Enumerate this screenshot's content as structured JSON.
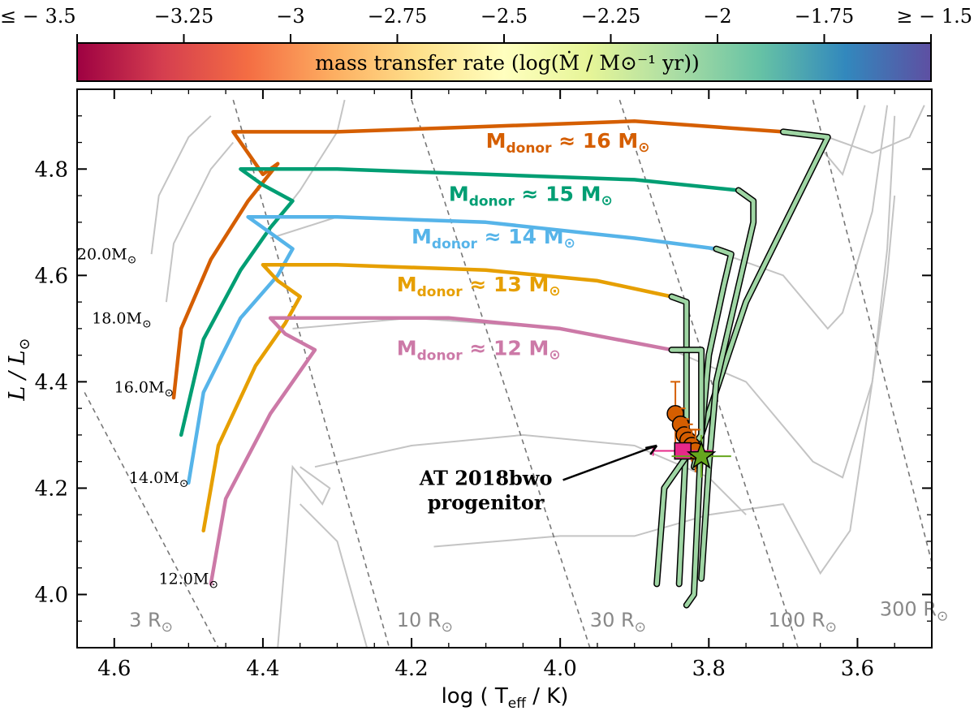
{
  "chart_data": {
    "type": "line",
    "title": "",
    "xlabel": "log ( T_eff / K)",
    "ylabel": "L / L_⊙",
    "xlim": [
      4.65,
      3.5
    ],
    "ylim": [
      3.9,
      4.95
    ],
    "x_ticks": [
      {
        "value": 4.6,
        "label": "4.6"
      },
      {
        "value": 4.4,
        "label": "4.4"
      },
      {
        "value": 4.2,
        "label": "4.2"
      },
      {
        "value": 4.0,
        "label": "4.0"
      },
      {
        "value": 3.8,
        "label": "3.8"
      },
      {
        "value": 3.6,
        "label": "3.6"
      }
    ],
    "y_ticks": [
      {
        "value": 4.0,
        "label": "4.0"
      },
      {
        "value": 4.2,
        "label": "4.2"
      },
      {
        "value": 4.4,
        "label": "4.4"
      },
      {
        "value": 4.6,
        "label": "4.6"
      },
      {
        "value": 4.8,
        "label": "4.8"
      }
    ],
    "colorbar": {
      "label": "mass transfer rate (log(Ṁ / M⊙⁻¹ yr))",
      "range": [
        -3.5,
        -1.5
      ],
      "colormap": "Spectral",
      "stops": [
        "#9e0142",
        "#d53e4f",
        "#f46d43",
        "#fdae61",
        "#fee08b",
        "#ffffbf",
        "#e6f598",
        "#abdda4",
        "#66c2a5",
        "#3288bd",
        "#5e4fa2"
      ],
      "ticks": [
        {
          "value": -3.5,
          "label": "≤ − 3.5"
        },
        {
          "value": -3.25,
          "label": "−3.25"
        },
        {
          "value": -3.0,
          "label": "−3"
        },
        {
          "value": -2.75,
          "label": "−2.75"
        },
        {
          "value": -2.5,
          "label": "−2.5"
        },
        {
          "value": -2.25,
          "label": "−2.25"
        },
        {
          "value": -2.0,
          "label": "−2"
        },
        {
          "value": -1.75,
          "label": "−1.75"
        },
        {
          "value": -1.5,
          "label": "≥ − 1.5"
        }
      ]
    },
    "single_tracks": [
      {
        "name": "20.0M⊙",
        "label": "20.0M",
        "points": [
          [
            4.55,
            4.64
          ],
          [
            4.54,
            4.75
          ],
          [
            4.5,
            4.86
          ],
          [
            4.47,
            4.9
          ]
        ]
      },
      {
        "name": "18.0M⊙",
        "label": "18.0M",
        "points": [
          [
            4.53,
            4.55
          ],
          [
            4.52,
            4.66
          ],
          [
            4.47,
            4.8
          ],
          [
            4.44,
            4.85
          ]
        ]
      },
      {
        "name": "16.0M⊙",
        "label": "16.0M",
        "points": []
      },
      {
        "name": "14.0M⊙",
        "label": "14.0M",
        "points": []
      },
      {
        "name": "12.0M⊙",
        "label": "12.0M",
        "points": []
      }
    ],
    "background_tracks": [
      [
        [
          4.39,
          4.67
        ],
        [
          4.3,
          4.71
        ],
        [
          4.1,
          4.7
        ],
        [
          3.9,
          4.67
        ],
        [
          3.8,
          4.65
        ],
        [
          3.7,
          4.6
        ],
        [
          3.64,
          4.5
        ],
        [
          3.62,
          4.53
        ],
        [
          3.58,
          4.72
        ],
        [
          3.56,
          4.92
        ]
      ],
      [
        [
          4.36,
          4.5
        ],
        [
          4.2,
          4.52
        ],
        [
          4.0,
          4.5
        ],
        [
          3.85,
          4.46
        ],
        [
          3.75,
          4.4
        ],
        [
          3.66,
          4.25
        ],
        [
          3.62,
          4.22
        ],
        [
          3.58,
          4.4
        ],
        [
          3.56,
          4.65
        ],
        [
          3.55,
          4.9
        ]
      ],
      [
        [
          3.64,
          4.86
        ],
        [
          3.58,
          4.83
        ],
        [
          3.53,
          4.86
        ],
        [
          3.51,
          4.92
        ]
      ],
      [
        [
          4.4,
          4.67
        ],
        [
          4.35,
          4.76
        ],
        [
          4.3,
          4.87
        ],
        [
          4.29,
          4.93
        ]
      ],
      [
        [
          4.17,
          4.09
        ],
        [
          4.0,
          4.11
        ],
        [
          3.9,
          4.11
        ],
        [
          3.8,
          4.15
        ],
        [
          3.7,
          4.17
        ],
        [
          3.65,
          4.04
        ],
        [
          3.61,
          4.12
        ],
        [
          3.58,
          4.4
        ],
        [
          3.56,
          4.6
        ],
        [
          3.55,
          4.75
        ]
      ],
      [
        [
          4.33,
          4.24
        ],
        [
          4.2,
          4.28
        ],
        [
          4.05,
          4.3
        ],
        [
          3.9,
          4.28
        ],
        [
          3.8,
          4.22
        ],
        [
          3.75,
          4.15
        ]
      ],
      [
        [
          4.35,
          4.17
        ],
        [
          4.3,
          4.1
        ],
        [
          4.26,
          3.9
        ]
      ],
      [
        [
          4.35,
          4.24
        ],
        [
          4.31,
          4.2
        ],
        [
          4.32,
          4.17
        ],
        [
          4.36,
          4.24
        ],
        [
          4.38,
          3.9
        ]
      ],
      [
        [
          3.65,
          4.84
        ],
        [
          3.62,
          4.79
        ],
        [
          3.59,
          4.92
        ]
      ]
    ],
    "radius_lines": [
      {
        "label": "3 R⊙",
        "text": "3 R",
        "points": [
          [
            4.64,
            4.38
          ],
          [
            4.46,
            3.9
          ]
        ]
      },
      {
        "label": "10 R⊙",
        "text": "10 R",
        "points": [
          [
            4.44,
            4.93
          ],
          [
            4.23,
            3.9
          ]
        ]
      },
      {
        "label": "30 R⊙",
        "text": "30 R",
        "points": [
          [
            4.2,
            4.93
          ],
          [
            3.96,
            3.9
          ]
        ]
      },
      {
        "label": "100 R⊙",
        "text": "100 R",
        "points": [
          [
            3.92,
            4.93
          ],
          [
            3.68,
            3.9
          ]
        ]
      },
      {
        "label": "300 R⊙",
        "text": "300 R",
        "points": [
          [
            3.66,
            4.93
          ],
          [
            3.5,
            4.06
          ]
        ]
      }
    ],
    "series": [
      {
        "name": "Mdonor ≈ 16 M⊙",
        "label": "M",
        "sub": "donor",
        "suffix": " ≈ 16 M",
        "color": "#d55e00",
        "points": [
          [
            4.52,
            4.37
          ],
          [
            4.51,
            4.5
          ],
          [
            4.47,
            4.63
          ],
          [
            4.42,
            4.74
          ],
          [
            4.38,
            4.81
          ],
          [
            4.4,
            4.79
          ],
          [
            4.42,
            4.83
          ],
          [
            4.44,
            4.87
          ],
          [
            4.3,
            4.87
          ],
          [
            4.1,
            4.88
          ],
          [
            3.9,
            4.89
          ],
          [
            3.7,
            4.87
          ]
        ],
        "mt": [
          [
            3.7,
            4.87
          ],
          [
            3.64,
            4.86
          ],
          [
            3.75,
            4.55
          ],
          [
            3.81,
            4.3
          ],
          [
            3.82,
            4.24
          ]
        ]
      },
      {
        "name": "Mdonor ≈ 15 M⊙",
        "label": "M",
        "sub": "donor",
        "suffix": " ≈ 15 M",
        "color": "#009e73",
        "points": [
          [
            4.51,
            4.3
          ],
          [
            4.48,
            4.48
          ],
          [
            4.43,
            4.61
          ],
          [
            4.39,
            4.69
          ],
          [
            4.36,
            4.74
          ],
          [
            4.4,
            4.77
          ],
          [
            4.43,
            4.8
          ],
          [
            4.3,
            4.8
          ],
          [
            4.1,
            4.79
          ],
          [
            3.9,
            4.78
          ],
          [
            3.76,
            4.76
          ]
        ],
        "mt": [
          [
            3.76,
            4.76
          ],
          [
            3.74,
            4.74
          ],
          [
            3.74,
            4.7
          ],
          [
            3.79,
            4.4
          ],
          [
            3.8,
            4.24
          ],
          [
            3.81,
            4.03
          ]
        ]
      },
      {
        "name": "Mdonor ≈ 14 M⊙",
        "label": "M",
        "sub": "donor",
        "suffix": " ≈ 14 M",
        "color": "#56b4e9",
        "points": [
          [
            4.5,
            4.21
          ],
          [
            4.48,
            4.38
          ],
          [
            4.43,
            4.52
          ],
          [
            4.38,
            4.6
          ],
          [
            4.36,
            4.65
          ],
          [
            4.39,
            4.68
          ],
          [
            4.42,
            4.71
          ],
          [
            4.3,
            4.71
          ],
          [
            4.1,
            4.7
          ],
          [
            3.9,
            4.67
          ],
          [
            3.79,
            4.65
          ]
        ],
        "mt": [
          [
            3.79,
            4.65
          ],
          [
            3.77,
            4.64
          ],
          [
            3.78,
            4.58
          ],
          [
            3.8,
            4.45
          ],
          [
            3.81,
            4.3
          ],
          [
            3.82,
            4.0
          ],
          [
            3.83,
            3.98
          ]
        ]
      },
      {
        "name": "Mdonor ≈ 13 M⊙",
        "label": "M",
        "sub": "donor",
        "suffix": " ≈ 13 M",
        "color": "#e69f00",
        "points": [
          [
            4.48,
            4.12
          ],
          [
            4.46,
            4.28
          ],
          [
            4.41,
            4.43
          ],
          [
            4.37,
            4.51
          ],
          [
            4.35,
            4.56
          ],
          [
            4.38,
            4.59
          ],
          [
            4.4,
            4.62
          ],
          [
            4.3,
            4.62
          ],
          [
            4.1,
            4.61
          ],
          [
            3.95,
            4.59
          ],
          [
            3.85,
            4.56
          ]
        ],
        "mt": [
          [
            3.85,
            4.56
          ],
          [
            3.83,
            4.55
          ],
          [
            3.83,
            4.45
          ],
          [
            3.83,
            4.3
          ],
          [
            3.84,
            4.02
          ]
        ]
      },
      {
        "name": "Mdonor ≈ 12 M⊙",
        "label": "M",
        "sub": "donor",
        "suffix": " ≈ 12 M",
        "color": "#cc79a7",
        "points": [
          [
            4.47,
            4.02
          ],
          [
            4.45,
            4.18
          ],
          [
            4.39,
            4.34
          ],
          [
            4.35,
            4.42
          ],
          [
            4.33,
            4.46
          ],
          [
            4.37,
            4.49
          ],
          [
            4.39,
            4.52
          ],
          [
            4.3,
            4.52
          ],
          [
            4.15,
            4.52
          ],
          [
            4.0,
            4.5
          ],
          [
            3.85,
            4.46
          ]
        ],
        "mt": [
          [
            3.85,
            4.46
          ],
          [
            3.81,
            4.46
          ],
          [
            3.81,
            4.3
          ],
          [
            3.86,
            4.2
          ],
          [
            3.87,
            4.02
          ]
        ]
      }
    ],
    "progenitor_points": [
      {
        "x": 3.845,
        "y": 4.34,
        "ex": 0.0,
        "ey": 0.06
      },
      {
        "x": 3.838,
        "y": 4.32,
        "ex": 0.0,
        "ey": 0.03
      },
      {
        "x": 3.833,
        "y": 4.3,
        "ex": 0.0,
        "ey": 0.03
      },
      {
        "x": 3.828,
        "y": 4.29,
        "ex": 0.0,
        "ey": 0.03
      },
      {
        "x": 3.823,
        "y": 4.28,
        "ex": 0.0,
        "ey": 0.03
      },
      {
        "x": 3.818,
        "y": 4.27,
        "ex": 0.0,
        "ey": 0.04
      }
    ],
    "square_point": {
      "x": 3.835,
      "y": 4.27,
      "ex": 0.04,
      "ey": 0.03
    },
    "star_point": {
      "x": 3.81,
      "y": 4.26,
      "ex": 0.04,
      "ey": 0.04
    },
    "annotation": {
      "line1": "AT 2018bwo",
      "line2": "progenitor",
      "text_x": 4.1,
      "text_y": 4.2,
      "arrow_to": [
        3.87,
        4.28
      ]
    },
    "sun_symbol": "⊙"
  }
}
